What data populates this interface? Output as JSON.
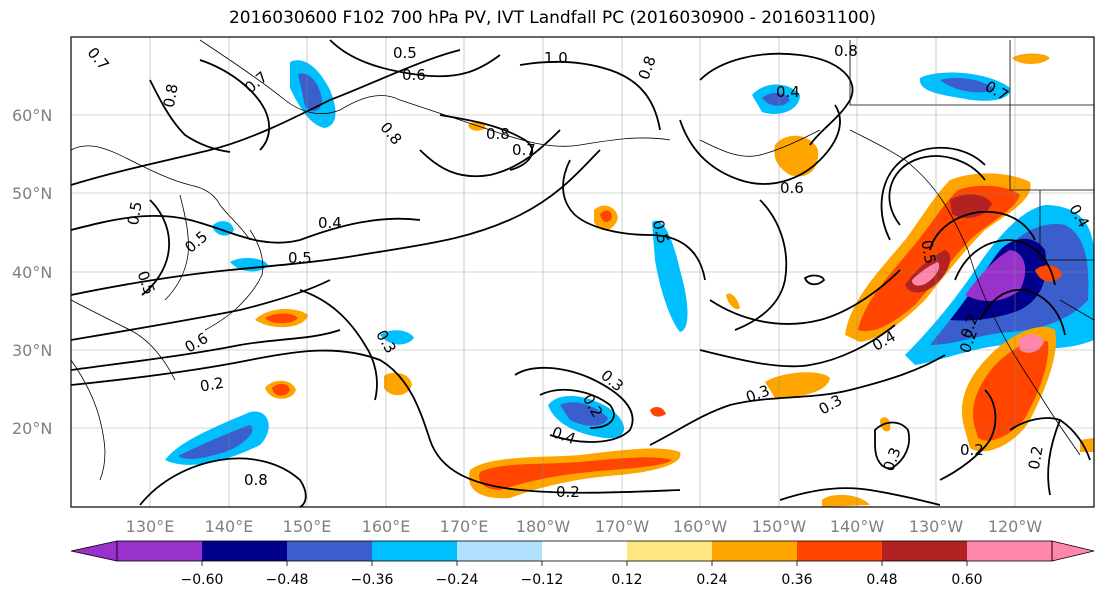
{
  "title": "2016030600 F102 700 hPa PV, IVT Landfall PC (2016030900 - 2016031100)",
  "latitude_labels": [
    "60°N",
    "50°N",
    "40°N",
    "30°N",
    "20°N"
  ],
  "longitude_labels": [
    "130°E",
    "140°E",
    "150°E",
    "160°E",
    "170°E",
    "180°W",
    "170°W",
    "160°W",
    "150°W",
    "140°W",
    "130°W",
    "120°W"
  ],
  "contour_labels": [
    "0.7",
    "0.5",
    "0.6",
    "1.0",
    "0.8",
    "0.8",
    "0.8",
    "0.7",
    "0.8",
    "0.7",
    "0.4",
    "0.8",
    "0.6",
    "0.5",
    "0.5",
    "0.4",
    "0.5",
    "0.5",
    "0.6",
    "0.3",
    "0.2",
    "0.3",
    "0.2",
    "0.4",
    "0.3",
    "0.3",
    "0.4",
    "0.2",
    "0.2",
    "0.5",
    "0.2",
    "0.5",
    "0.4",
    "0.2",
    "0.3",
    "0.2",
    "0.8",
    "0.7"
  ],
  "colorbar": {
    "ticks": [
      "−0.60",
      "−0.48",
      "−0.36",
      "−0.24",
      "−0.12",
      "0.12",
      "0.24",
      "0.36",
      "0.48",
      "0.60"
    ],
    "colors": [
      "#9932cc",
      "#00008b",
      "#3a5fcd",
      "#00bfff",
      "#b0e2ff",
      "#ffffff",
      "#ffe680",
      "#ffa500",
      "#ff4500",
      "#b22222",
      "#ff88aa"
    ]
  },
  "map": {
    "extent_lon": [
      120,
      245
    ],
    "extent_lat": [
      10,
      70
    ],
    "land_color": "none",
    "grid": true
  }
}
